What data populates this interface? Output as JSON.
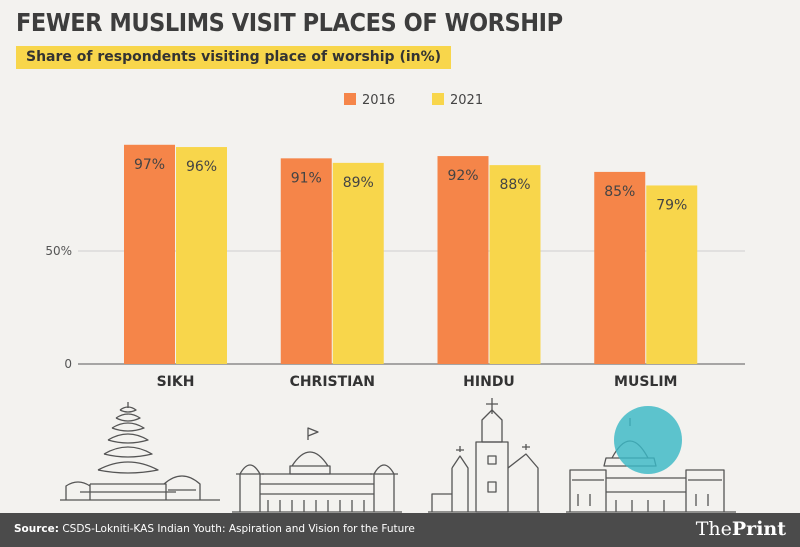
{
  "header": {
    "title": "FEWER MUSLIMS VISIT PLACES OF WORSHIP",
    "subtitle": "Share of respondents visiting place of worship (in%)"
  },
  "chart_data": {
    "type": "bar",
    "categories": [
      "SIKH",
      "CHRISTIAN",
      "HINDU",
      "MUSLIM"
    ],
    "series": [
      {
        "name": "2016",
        "values": [
          97,
          91,
          92,
          85
        ],
        "labels": [
          "97%",
          "91%",
          "92%",
          "85%"
        ],
        "color": "#f58549"
      },
      {
        "name": "2021",
        "values": [
          96,
          89,
          88,
          79
        ],
        "labels": [
          "96%",
          "89%",
          "88%",
          "79%"
        ],
        "color": "#f8d64b"
      }
    ],
    "ylim": [
      0,
      100
    ],
    "yticks": [
      {
        "value": 0,
        "label": "0"
      },
      {
        "value": 50,
        "label": "50%"
      }
    ],
    "legend": "top-center",
    "grid": true
  },
  "illustrations": [
    {
      "icon": "sikh-temple-icon"
    },
    {
      "icon": "church-cathedral-icon"
    },
    {
      "icon": "hindu-temple-icon"
    },
    {
      "icon": "mosque-icon"
    }
  ],
  "colors": {
    "highlight": "#3ab8c6",
    "footer": "#4b4b4b"
  },
  "footer": {
    "source_label": "Source:",
    "source_text": "CSDS-Lokniti-KAS Indian Youth: Aspiration and Vision for the Future",
    "brand_prefix": "The",
    "brand_name": "Print"
  }
}
